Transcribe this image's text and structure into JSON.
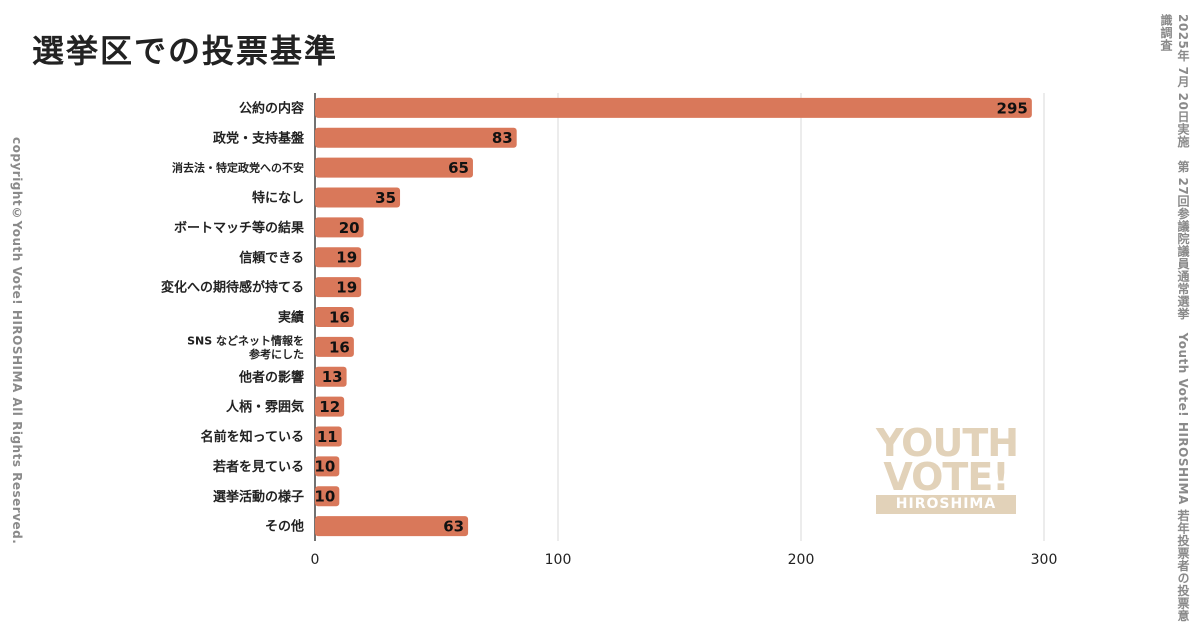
{
  "header": {
    "title": "選挙区での投票基準"
  },
  "side": {
    "left": "copyright©Youth Vote! HIROSHIMA  All Rights Reserved.",
    "right": "2025年 7月 20日実施　第 27回参議院議員通常選挙　Youth Vote! HIROSHIMA 若年投票者の投票意識調査"
  },
  "logo": {
    "line1": "YOUTH",
    "line2": "VOTE!",
    "line3": "HIROSHIMA"
  },
  "colors": {
    "bar": "#d9785a",
    "grid": "#d9d9d9",
    "axis": "#444444",
    "logo": "#e2d2b9"
  },
  "chart_data": {
    "type": "bar",
    "orientation": "horizontal",
    "categories": [
      "公約の内容",
      "政党・支持基盤",
      "消去法・特定政党への不安",
      "特になし",
      "ボートマッチ等の結果",
      "信頼できる",
      "変化への期待感が持てる",
      "実績",
      "SNS などネット情報を\n参考にした",
      "他者の影響",
      "人柄・雰囲気",
      "名前を知っている",
      "若者を見ている",
      "選挙活動の様子",
      "その他"
    ],
    "values": [
      295,
      83,
      65,
      35,
      20,
      19,
      19,
      16,
      16,
      13,
      12,
      11,
      10,
      10,
      63
    ],
    "xlim": [
      0,
      300
    ],
    "xticks": [
      0,
      100,
      200,
      300
    ],
    "grid": true,
    "data_labels": true
  }
}
